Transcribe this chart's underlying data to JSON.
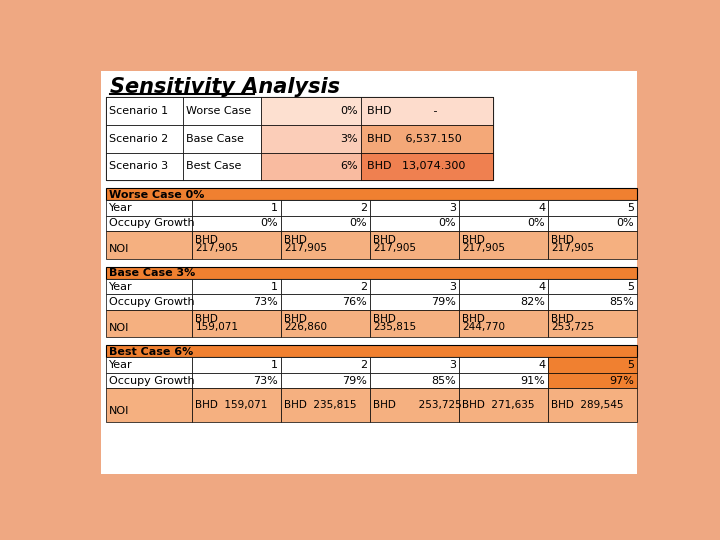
{
  "title": "Sensitivity Analysis",
  "page_bg": "#EFA882",
  "white_bg": "#FFFFFF",
  "scenarios": [
    {
      "label": "Scenario 1",
      "case": "Worse Case",
      "pct": "0%",
      "bhd": "BHD",
      "value": "          -"
    },
    {
      "label": "Scenario 2",
      "case": "Base Case",
      "pct": "3%",
      "bhd": "BHD",
      "value": "  6,537.150"
    },
    {
      "label": "Scenario 3",
      "case": "Best Case",
      "pct": "6%",
      "bhd": "BHD",
      "value": " 13,074.300"
    }
  ],
  "scen_col_left": [
    "#FDE0D0",
    "#FBCDB8",
    "#F9BBA0"
  ],
  "scen_col_right": [
    "#FDDCCC",
    "#F4A878",
    "#EF8050"
  ],
  "header_color": "#F08030",
  "header_text_color": "#000000",
  "orange_row": "#F5B080",
  "white_row": "#FFFFFF",
  "worse_case": {
    "header": "Worse Case 0%",
    "years": [
      "1",
      "2",
      "3",
      "4",
      "5"
    ],
    "occupy": [
      "0%",
      "0%",
      "0%",
      "0%",
      "0%"
    ],
    "noi_line1": [
      "BHD",
      "BHD",
      "BHD",
      "BHD",
      "BHD"
    ],
    "noi_line2": [
      "217,905",
      "217,905",
      "217,905",
      "217,905",
      "217,905"
    ]
  },
  "base_case": {
    "header": "Base Case 3%",
    "years": [
      "1",
      "2",
      "3",
      "4",
      "5"
    ],
    "occupy": [
      "73%",
      "76%",
      "79%",
      "82%",
      "85%"
    ],
    "noi_line1": [
      "BHD",
      "BHD",
      "BHD",
      "BHD",
      "BHD"
    ],
    "noi_line2": [
      "159,071",
      "226,860",
      "235,815",
      "244,770",
      "253,725"
    ]
  },
  "best_case": {
    "header": "Best Case 6%",
    "years": [
      "1",
      "2",
      "3",
      "4",
      "5"
    ],
    "occupy": [
      "73%",
      "79%",
      "85%",
      "91%",
      "97%"
    ],
    "noi_text": [
      "BHD  159,071",
      "BHD  235,815",
      "BHD       253,725",
      "BHD  271,635",
      "BHD  289,545"
    ],
    "highlight_last": true
  }
}
